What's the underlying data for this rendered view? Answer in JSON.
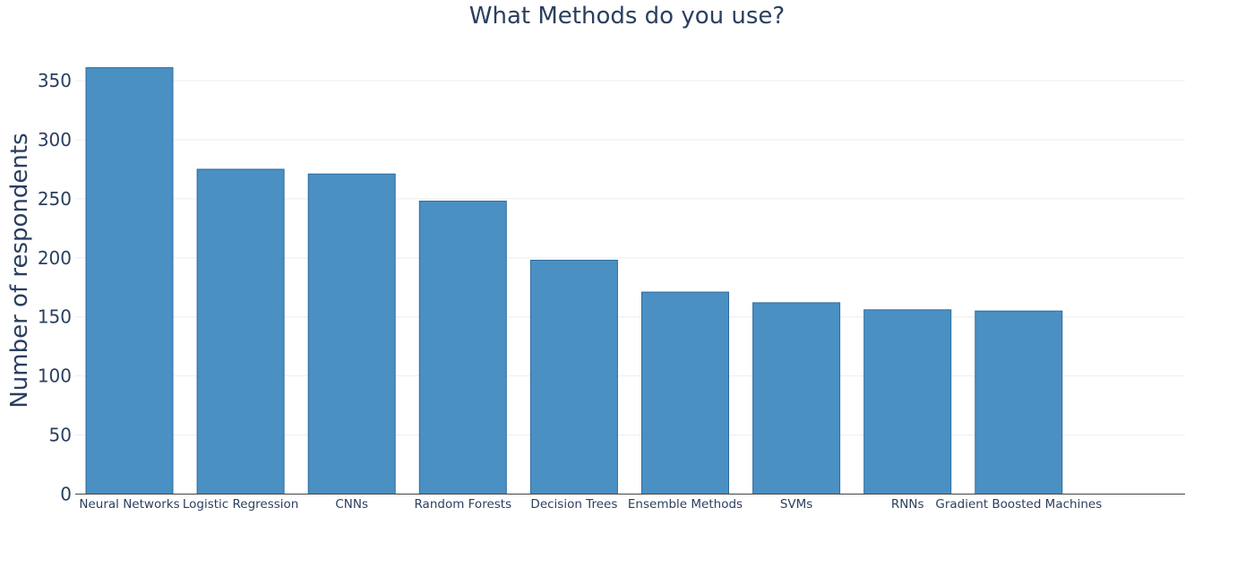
{
  "chart_data": {
    "type": "bar",
    "title": "What Methods do you use?",
    "xlabel": "",
    "ylabel": "Number of respondents",
    "categories": [
      "Neural Networks",
      "Logistic Regression",
      "CNNs",
      "Random Forests",
      "Decision Trees",
      "Ensemble Methods",
      "SVMs",
      "RNNs",
      "Gradient Boosted Machines"
    ],
    "values": [
      361,
      275,
      271,
      248,
      198,
      171,
      162,
      156,
      155
    ],
    "ylim": [
      0,
      370
    ],
    "yticks": [
      0,
      50,
      100,
      150,
      200,
      250,
      300,
      350
    ],
    "grid": true,
    "legend": "none",
    "colors": {
      "bar_fill": "#4a90c2",
      "bar_stroke": "#2f6a9e",
      "text": "#2a3f5f",
      "grid": "#eeeeee",
      "axis": "#444444"
    }
  }
}
